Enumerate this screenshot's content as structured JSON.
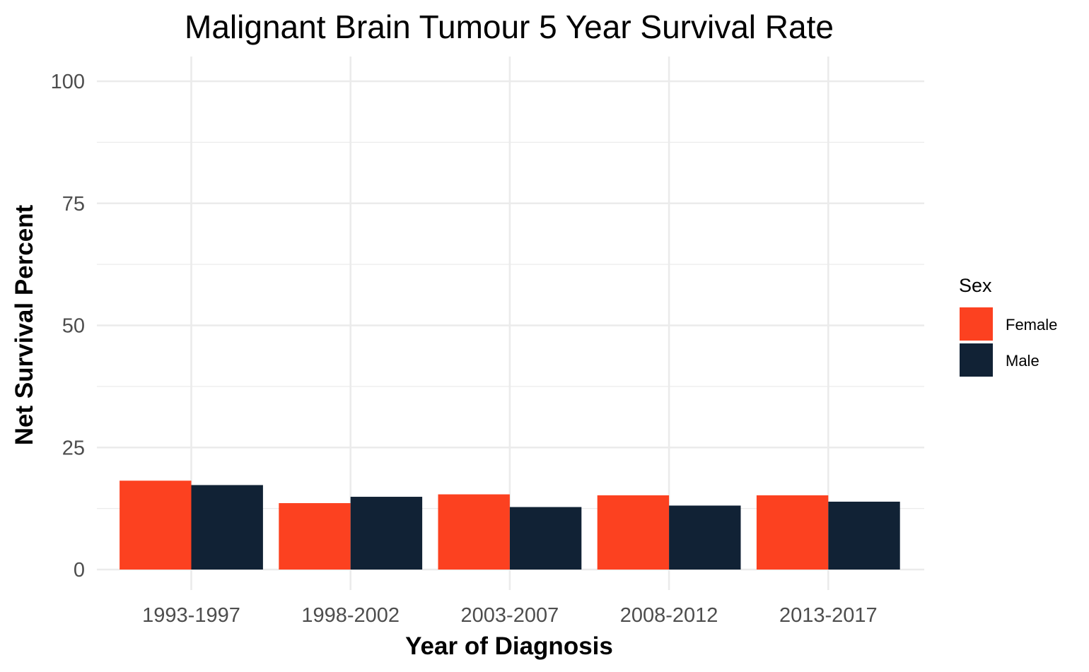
{
  "chart_data": {
    "type": "bar",
    "title": "Malignant Brain Tumour 5 Year Survival Rate",
    "xlabel": "Year of Diagnosis",
    "ylabel": "Net Survival Percent",
    "categories": [
      "1993-1997",
      "1998-2002",
      "2003-2007",
      "2008-2012",
      "2013-2017"
    ],
    "series": [
      {
        "name": "Female",
        "color": "#fc4120",
        "values": [
          18.2,
          13.6,
          15.4,
          15.2,
          15.2
        ]
      },
      {
        "name": "Male",
        "color": "#112235",
        "values": [
          17.3,
          14.9,
          12.8,
          13.1,
          13.9
        ]
      }
    ],
    "ylim": [
      0,
      100
    ],
    "yticks": [
      0,
      25,
      50,
      75,
      100
    ],
    "grid": true,
    "legend": {
      "title": "Sex",
      "position": "right"
    }
  }
}
